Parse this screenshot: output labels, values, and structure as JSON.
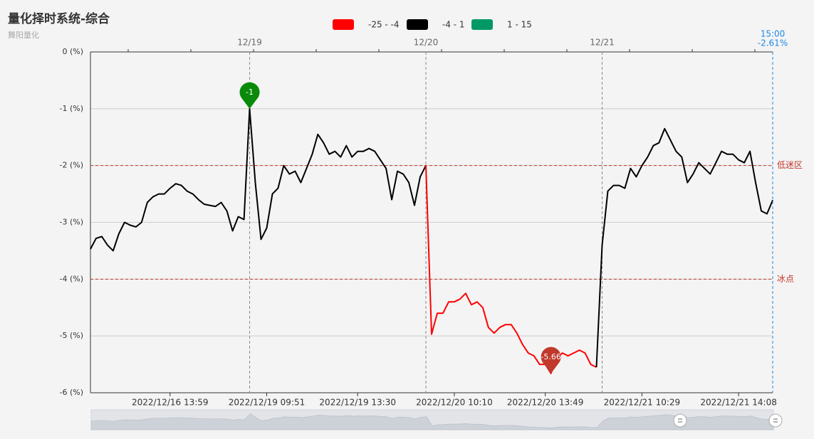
{
  "chart_data": {
    "type": "line",
    "title": "量化择时系统-综合",
    "subtitle": "舞阳量化",
    "pieces": [
      {
        "min": -25,
        "max": -4,
        "label": "-25 - -4",
        "color": "#ff0000"
      },
      {
        "min": -4,
        "max": 1,
        "label": "-4 - 1",
        "color": "#000000"
      },
      {
        "min": 1,
        "max": 15,
        "label": "1 - 15",
        "color": "#009966"
      }
    ],
    "categories": [
      null,
      null,
      null,
      null,
      null,
      null,
      null,
      null,
      null,
      null,
      null,
      null,
      null,
      null,
      "2022/12/16 13:59",
      null,
      null,
      null,
      null,
      null,
      null,
      null,
      null,
      null,
      null,
      null,
      null,
      null,
      null,
      null,
      null,
      "2022/12/19 09:51",
      null,
      null,
      null,
      null,
      null,
      null,
      null,
      null,
      null,
      null,
      null,
      null,
      null,
      null,
      null,
      "2022/12/19 13:30",
      null,
      null,
      null,
      null,
      null,
      null,
      null,
      null,
      null,
      null,
      null,
      null,
      null,
      null,
      null,
      null,
      "2022/12/20 10:10",
      null,
      null,
      null,
      null,
      null,
      null,
      null,
      null,
      null,
      null,
      null,
      null,
      null,
      null,
      null,
      "2022/12/20 13:49",
      null,
      null,
      null,
      null,
      null,
      null,
      null,
      null,
      null,
      null,
      null,
      null,
      null,
      null,
      null,
      null,
      "2022/12/21 10:29",
      null,
      null,
      null,
      null,
      null,
      null,
      null,
      null,
      null,
      null,
      null,
      null,
      null,
      null,
      null,
      null,
      "2022/12/21 14:08",
      null,
      null,
      null,
      null,
      null,
      null
    ],
    "values": [
      -3.47,
      -3.28,
      -3.25,
      -3.4,
      -3.5,
      -3.2,
      -3.0,
      -3.05,
      -3.08,
      -3.0,
      -2.65,
      -2.55,
      -2.5,
      -2.5,
      -2.4,
      -2.32,
      -2.35,
      -2.45,
      -2.5,
      -2.6,
      -2.68,
      -2.7,
      -2.72,
      -2.65,
      -2.8,
      -3.15,
      -2.9,
      -2.95,
      -1,
      -2.3,
      -3.3,
      -3.1,
      -2.5,
      -2.4,
      -2.0,
      -2.15,
      -2.1,
      -2.3,
      -2.05,
      -1.8,
      -1.45,
      -1.6,
      -1.8,
      -1.75,
      -1.85,
      -1.65,
      -1.85,
      -1.75,
      -1.75,
      -1.7,
      -1.75,
      -1.9,
      -2.05,
      -2.6,
      -2.1,
      -2.15,
      -2.3,
      -2.7,
      -2.2,
      -2.0,
      -4.97,
      -4.6,
      -4.6,
      -4.4,
      -4.4,
      -4.35,
      -4.25,
      -4.45,
      -4.4,
      -4.5,
      -4.85,
      -4.95,
      -4.85,
      -4.8,
      -4.8,
      -4.95,
      -5.15,
      -5.3,
      -5.35,
      -5.5,
      -5.5,
      -5.66,
      -5.4,
      -5.3,
      -5.35,
      -5.3,
      -5.25,
      -5.3,
      -5.5,
      -5.55,
      -3.4,
      -2.45,
      -2.35,
      -2.35,
      -2.4,
      -2.05,
      -2.2,
      -2.0,
      -1.85,
      -1.65,
      -1.6,
      -1.35,
      -1.55,
      -1.75,
      -1.85,
      -2.3,
      -2.15,
      -1.95,
      -2.05,
      -2.15,
      -1.95,
      -1.75,
      -1.8,
      -1.8,
      -1.9,
      -1.95,
      -1.75,
      -2.3,
      -2.8,
      -2.85,
      -2.61
    ],
    "ylim": [
      -6,
      0
    ],
    "yticks": [
      {
        "value": 0,
        "label": "0 (%)"
      },
      {
        "value": -1,
        "label": "-1 (%)"
      },
      {
        "value": -2,
        "label": "-2 (%)"
      },
      {
        "value": -3,
        "label": "-3 (%)"
      },
      {
        "value": -4,
        "label": "-4 (%)"
      },
      {
        "value": -5,
        "label": "-5 (%)"
      },
      {
        "value": -6,
        "label": "-6 (%)"
      }
    ],
    "grid": true,
    "day_lines": [
      {
        "index": 28,
        "label": "12/19"
      },
      {
        "index": 59,
        "label": "12/20"
      },
      {
        "index": 90,
        "label": "12/21"
      }
    ],
    "mark_lines": [
      {
        "value": -2,
        "label": "低迷区"
      },
      {
        "value": -4,
        "label": "冰点"
      }
    ],
    "mark_line_color": "#c0392b",
    "mark_points": [
      {
        "index": 28,
        "value": -1,
        "color": "#0a8a0a"
      },
      {
        "index": 81,
        "value": -5.66,
        "color": "#c0392b"
      }
    ],
    "axis_pointer": {
      "index": 120,
      "time": "15:00",
      "label": "-2.61%",
      "color": "#1e88e5"
    }
  }
}
